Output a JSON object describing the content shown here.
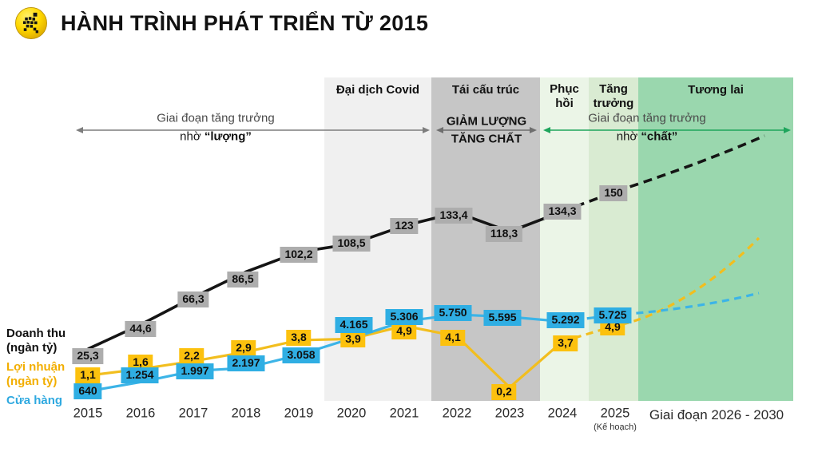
{
  "header": {
    "title": "HÀNH TRÌNH PHÁT TRIỂN TỪ 2015",
    "logo": "mwg-running-figure-logo"
  },
  "legend": [
    {
      "label": "Doanh thu",
      "unit": "(ngàn tỷ)",
      "color": "#111111"
    },
    {
      "label": "Lợi nhuận",
      "unit": "(ngàn tỷ)",
      "color": "#f2ae00"
    },
    {
      "label": "Cửa hàng",
      "unit": "",
      "color": "#2fa9e0"
    }
  ],
  "phases": [
    {
      "label": "Đại dịch Covid",
      "color": "#f0f0f0"
    },
    {
      "label": "Tái cấu trúc",
      "color": "#c6c6c6"
    },
    {
      "label": "Phục hồi",
      "color": "#ebf5e7"
    },
    {
      "label": "Tăng trưởng",
      "color": "#d9ebd2"
    },
    {
      "label": "Tương lai",
      "color": "#9ad7ae"
    }
  ],
  "annotations": [
    {
      "line1": "Giai đoạn tăng trưởng",
      "line2_prefix": "nhờ ",
      "line2_emphasis": "“lượng”",
      "arrow_color": "#7d7d7d",
      "all_bold": false
    },
    {
      "line1": "GIẢM LƯỢNG",
      "line2_prefix": "",
      "line2_emphasis": "TĂNG CHẤT",
      "arrow_color": "#6e6e6e",
      "all_bold": true
    },
    {
      "line1": "Giai đoạn tăng trưởng",
      "line2_prefix": "nhờ ",
      "line2_emphasis": "“chất”",
      "arrow_color": "#1ea55c",
      "all_bold": false
    }
  ],
  "chart_data": {
    "type": "line",
    "categories": [
      "2015",
      "2016",
      "2017",
      "2018",
      "2019",
      "2020",
      "2021",
      "2022",
      "2023",
      "2024",
      "2025"
    ],
    "category_note": {
      "index": 10,
      "text": "(Kế hoạch)"
    },
    "future_label": "Giai đoạn 2026 - 2030",
    "legend_position": "left",
    "grid": false,
    "series": [
      {
        "name": "Doanh thu (ngàn tỷ)",
        "color": "#151515",
        "label_bg": "#adadad",
        "values": [
          25.3,
          44.6,
          66.3,
          86.5,
          102.2,
          108.5,
          123,
          133.4,
          118.3,
          134.3,
          150
        ],
        "labels": [
          "25,3",
          "44,6",
          "66,3",
          "86,5",
          "102,2",
          "108,5",
          "123",
          "133,4",
          "118,3",
          "134,3",
          "150"
        ],
        "dashed_from_index": 9,
        "future_trend": "rising"
      },
      {
        "name": "Lợi nhuận (ngàn tỷ)",
        "color": "#f2be1e",
        "label_bg": "#fcc10e",
        "values": [
          1.1,
          1.6,
          2.2,
          2.9,
          3.8,
          3.9,
          4.9,
          4.1,
          0.2,
          3.7,
          4.9
        ],
        "labels": [
          "1,1",
          "1,6",
          "2,2",
          "2,9",
          "3,8",
          "3,9",
          "4,9",
          "4,1",
          "0,2",
          "3,7",
          "4,9"
        ],
        "dashed_from_index": 9,
        "future_trend": "rising-steep"
      },
      {
        "name": "Cửa hàng",
        "color": "#3cb4e7",
        "label_bg": "#2faee3",
        "values": [
          640,
          1254,
          1997,
          2197,
          3058,
          4165,
          5306,
          5750,
          5595,
          5292,
          5725
        ],
        "labels": [
          "640",
          "1.254",
          "1.997",
          "2.197",
          "3.058",
          "4.165",
          "5.306",
          "5.750",
          "5.595",
          "5.292",
          "5.725"
        ],
        "dashed_from_index": 9,
        "future_trend": "rising-slow"
      }
    ]
  }
}
